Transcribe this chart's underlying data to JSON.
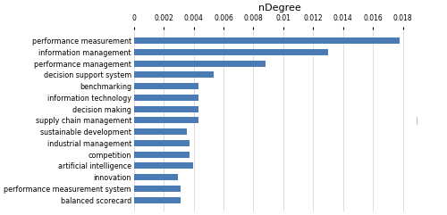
{
  "categories": [
    "balanced scorecard",
    "performance measurement system",
    "innovation",
    "artificial intelligence",
    "competition",
    "industrial management",
    "sustainable development",
    "supply chain management",
    "decision making",
    "information technology",
    "benchmarking",
    "decision support system",
    "performance management",
    "information management",
    "performance measurement"
  ],
  "values": [
    0.00315,
    0.00315,
    0.00295,
    0.00395,
    0.00375,
    0.00375,
    0.00355,
    0.00435,
    0.00435,
    0.00435,
    0.00435,
    0.00535,
    0.0088,
    0.013,
    0.0178
  ],
  "bar_color": "#4a7bb5",
  "xlabel": "nDegree",
  "xlim": [
    0,
    0.0195
  ],
  "xticks": [
    0,
    0.002,
    0.004,
    0.006,
    0.008,
    0.01,
    0.012,
    0.014,
    0.016,
    0.018
  ],
  "bar_height": 0.55,
  "background_color": "#ffffff",
  "grid_color": "#d0d0d0",
  "label_fontsize": 5.8,
  "tick_fontsize": 5.5,
  "title_fontsize": 8
}
